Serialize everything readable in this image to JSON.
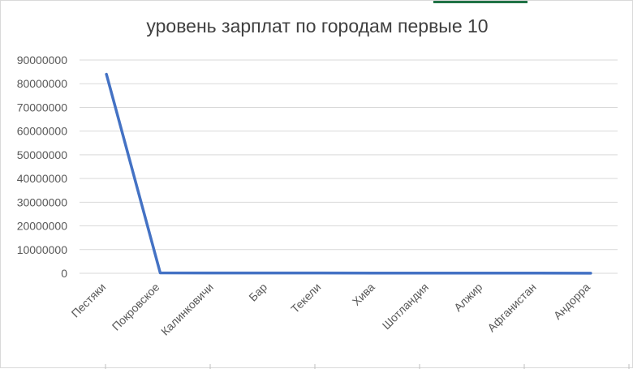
{
  "chart_data": {
    "type": "line",
    "title": "уровень зарплат по городам первые 10",
    "xlabel": "",
    "ylabel": "",
    "categories": [
      "Пестяки",
      "Покровское",
      "Калинковичи",
      "Бар",
      "Текели",
      "Хива",
      "Шотландия",
      "Алжир",
      "Афганистан",
      "Андорра"
    ],
    "series": [
      {
        "values": [
          84000000,
          150000,
          130000,
          120000,
          110000,
          100000,
          90000,
          80000,
          70000,
          60000
        ]
      }
    ],
    "ylim": [
      0,
      90000000
    ],
    "yticks": [
      "0",
      "10000000",
      "20000000",
      "30000000",
      "40000000",
      "50000000",
      "60000000",
      "70000000",
      "80000000",
      "90000000"
    ],
    "grid": true,
    "legend": "none",
    "line_color": "#4472c4",
    "grid_color": "#d9d9d9",
    "text_color": "#595959"
  }
}
